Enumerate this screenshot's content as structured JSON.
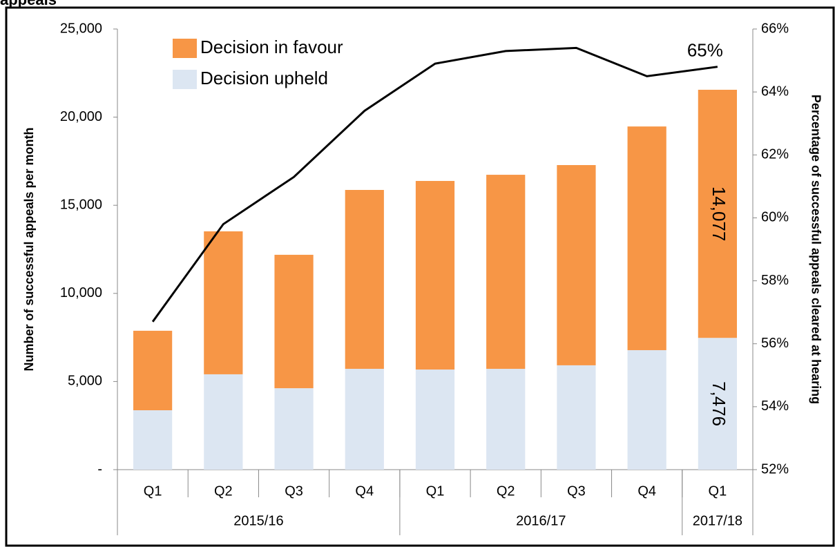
{
  "chart_data": {
    "type": "bar",
    "title": "appeals",
    "categories": [
      "Q1",
      "Q2",
      "Q3",
      "Q4",
      "Q1",
      "Q2",
      "Q3",
      "Q4",
      "Q1"
    ],
    "groups": [
      {
        "label": "2015/16",
        "span": 4
      },
      {
        "label": "2016/17",
        "span": 4
      },
      {
        "label": "2017/18",
        "span": 1
      }
    ],
    "series": [
      {
        "name": "Decision upheld",
        "color": "#dce6f2",
        "values": [
          3370,
          5410,
          4620,
          5720,
          5680,
          5720,
          5920,
          6780,
          7476
        ],
        "value_labels": [
          null,
          null,
          null,
          null,
          null,
          null,
          null,
          null,
          "7,476"
        ]
      },
      {
        "name": "Decision in favour",
        "color": "#f79646",
        "values": [
          4510,
          8110,
          7570,
          10150,
          10700,
          11010,
          11360,
          12690,
          14077
        ],
        "value_labels": [
          null,
          null,
          null,
          null,
          null,
          null,
          null,
          null,
          "14,077"
        ]
      },
      {
        "type": "line",
        "axis": "y2",
        "color": "#000000",
        "values": [
          56.7,
          59.8,
          61.3,
          63.4,
          64.9,
          65.3,
          65.4,
          64.5,
          64.8
        ],
        "value_labels": [
          null,
          null,
          null,
          null,
          null,
          null,
          null,
          null,
          "65%"
        ]
      }
    ],
    "ylabel": "Number of successful appeals per month",
    "y2label": "Percentage of successful appeals cleared at hearing",
    "ylim": [
      0,
      25000
    ],
    "yticks": [
      {
        "value": 0,
        "label": "-"
      },
      {
        "value": 5000,
        "label": "5,000"
      },
      {
        "value": 10000,
        "label": "10,000"
      },
      {
        "value": 15000,
        "label": "15,000"
      },
      {
        "value": 20000,
        "label": "20,000"
      },
      {
        "value": 25000,
        "label": "25,000"
      }
    ],
    "y2lim": [
      52,
      66
    ],
    "y2ticks": [
      {
        "value": 52,
        "label": "52%"
      },
      {
        "value": 54,
        "label": "54%"
      },
      {
        "value": 56,
        "label": "56%"
      },
      {
        "value": 58,
        "label": "58%"
      },
      {
        "value": 60,
        "label": "60%"
      },
      {
        "value": 62,
        "label": "62%"
      },
      {
        "value": 64,
        "label": "64%"
      },
      {
        "value": 66,
        "label": "66%"
      }
    ],
    "legend": "top-left",
    "grid": false
  }
}
